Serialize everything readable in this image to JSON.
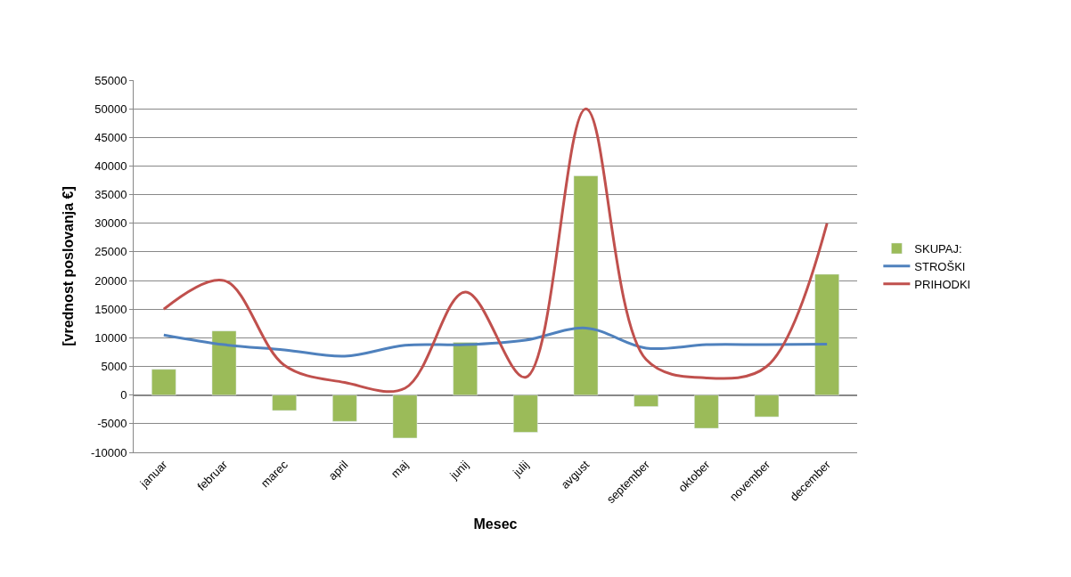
{
  "chart_data": {
    "type": "bar",
    "xlabel": "Mesec",
    "ylabel": "[vrednost poslovanja €]",
    "categories": [
      "januar",
      "februar",
      "marec",
      "april",
      "maj",
      "junij",
      "julij",
      "avgust",
      "september",
      "oktober",
      "november",
      "december"
    ],
    "series": [
      {
        "name": "SKUPAJ:",
        "color": "#9bbb59",
        "values": [
          4500,
          11200,
          -2700,
          -4600,
          -7500,
          9200,
          -6500,
          38300,
          -2000,
          -5800,
          -3800,
          21100
        ]
      },
      {
        "name": "STROŠKI",
        "type": "line",
        "color": "#4f81bd",
        "values": [
          10500,
          8800,
          7900,
          6800,
          8700,
          8800,
          9600,
          11700,
          8200,
          8800,
          8800,
          8900
        ]
      },
      {
        "name": "PRIHODKI",
        "type": "line",
        "color": "#c0504d",
        "values": [
          15000,
          20000,
          5200,
          2200,
          1200,
          18000,
          3100,
          50000,
          6200,
          3000,
          5000,
          30000
        ]
      }
    ],
    "ylim": [
      -10000,
      55000
    ],
    "yticks": [
      -10000,
      -5000,
      0,
      5000,
      10000,
      15000,
      20000,
      25000,
      30000,
      35000,
      40000,
      45000,
      50000,
      55000
    ],
    "grid": "y",
    "legend": "right",
    "marker": "none",
    "line_style": "solid"
  }
}
